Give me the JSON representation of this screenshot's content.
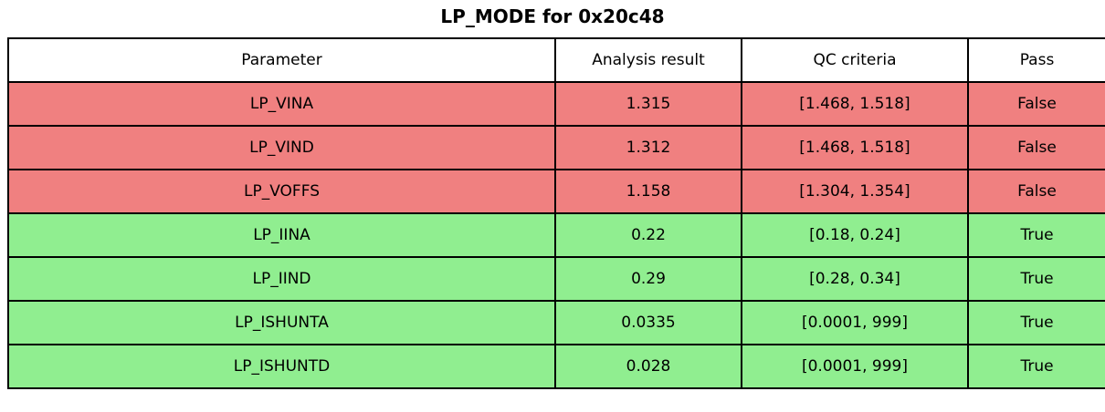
{
  "colors": {
    "fail_bg": "#f08080",
    "pass_bg": "#90ee90",
    "header_bg": "#ffffff",
    "border": "#000000"
  },
  "chart_data": {
    "type": "table",
    "title": "LP_MODE for 0x20c48",
    "columns": [
      "Parameter",
      "Analysis result",
      "QC criteria",
      "Pass"
    ],
    "rows": [
      {
        "parameter": "LP_VINA",
        "analysis_result": "1.315",
        "qc_criteria": "[1.468, 1.518]",
        "pass": "False"
      },
      {
        "parameter": "LP_VIND",
        "analysis_result": "1.312",
        "qc_criteria": "[1.468, 1.518]",
        "pass": "False"
      },
      {
        "parameter": "LP_VOFFS",
        "analysis_result": "1.158",
        "qc_criteria": "[1.304, 1.354]",
        "pass": "False"
      },
      {
        "parameter": "LP_IINA",
        "analysis_result": "0.22",
        "qc_criteria": "[0.18, 0.24]",
        "pass": "True"
      },
      {
        "parameter": "LP_IIND",
        "analysis_result": "0.29",
        "qc_criteria": "[0.28, 0.34]",
        "pass": "True"
      },
      {
        "parameter": "LP_ISHUNTA",
        "analysis_result": "0.0335",
        "qc_criteria": "[0.0001, 999]",
        "pass": "True"
      },
      {
        "parameter": "LP_ISHUNTD",
        "analysis_result": "0.028",
        "qc_criteria": "[0.0001, 999]",
        "pass": "True"
      }
    ]
  }
}
